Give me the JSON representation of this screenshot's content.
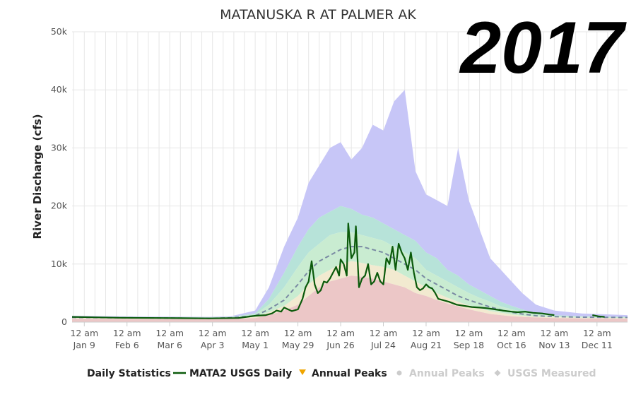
{
  "chart_data": {
    "type": "area",
    "title": "MATANUSKA R AT PALMER AK",
    "year_label": "2017",
    "ylabel": "River Discharge (cfs)",
    "xlabel": "",
    "ylim": [
      0,
      50000
    ],
    "y_ticks": [
      {
        "value": 0,
        "label": "0"
      },
      {
        "value": 10000,
        "label": "10k"
      },
      {
        "value": 20000,
        "label": "20k"
      },
      {
        "value": 30000,
        "label": "30k"
      },
      {
        "value": 40000,
        "label": "40k"
      },
      {
        "value": 50000,
        "label": "50k"
      }
    ],
    "x_ticks": [
      {
        "date": "2017-01-09",
        "line1": "12 am",
        "line2": "Jan 9"
      },
      {
        "date": "2017-02-06",
        "line1": "12 am",
        "line2": "Feb 6"
      },
      {
        "date": "2017-03-06",
        "line1": "12 am",
        "line2": "Mar 6"
      },
      {
        "date": "2017-04-03",
        "line1": "12 am",
        "line2": "Apr 3"
      },
      {
        "date": "2017-05-01",
        "line1": "12 am",
        "line2": "May 1"
      },
      {
        "date": "2017-05-29",
        "line1": "12 am",
        "line2": "May 29"
      },
      {
        "date": "2017-06-26",
        "line1": "12 am",
        "line2": "Jun 26"
      },
      {
        "date": "2017-07-24",
        "line1": "12 am",
        "line2": "Jul 24"
      },
      {
        "date": "2017-08-21",
        "line1": "12 am",
        "line2": "Aug 21"
      },
      {
        "date": "2017-09-18",
        "line1": "12 am",
        "line2": "Sep 18"
      },
      {
        "date": "2017-10-16",
        "line1": "12 am",
        "line2": "Oct 16"
      },
      {
        "date": "2017-11-13",
        "line1": "12 am",
        "line2": "Nov 13"
      },
      {
        "date": "2017-12-11",
        "line1": "12 am",
        "line2": "Dec 11"
      }
    ],
    "grid": true,
    "colors": {
      "max_band": "#c7c6f7",
      "p90_band": "#b7e3d9",
      "p75_band": "#c9ecd1",
      "p25_band": "#f2ead0",
      "p10_band": "#ecc7c7",
      "median": "#7a8aa3",
      "daily": "#0b5a0b",
      "annual_peaks": "#f0a500",
      "disabled": "#cccccc"
    },
    "stats_x": [
      "2017-01-01",
      "2017-02-01",
      "2017-03-01",
      "2017-04-01",
      "2017-04-15",
      "2017-05-01",
      "2017-05-10",
      "2017-05-20",
      "2017-05-29",
      "2017-06-05",
      "2017-06-12",
      "2017-06-19",
      "2017-06-26",
      "2017-07-03",
      "2017-07-10",
      "2017-07-17",
      "2017-07-24",
      "2017-07-31",
      "2017-08-07",
      "2017-08-14",
      "2017-08-21",
      "2017-08-28",
      "2017-09-04",
      "2017-09-11",
      "2017-09-18",
      "2017-09-25",
      "2017-10-02",
      "2017-10-09",
      "2017-10-16",
      "2017-10-23",
      "2017-11-01",
      "2017-11-13",
      "2017-12-01",
      "2017-12-31"
    ],
    "stats": {
      "max": [
        1100,
        1000,
        950,
        900,
        1000,
        2000,
        6000,
        13000,
        18000,
        24000,
        27000,
        30000,
        31000,
        28000,
        30000,
        34000,
        33000,
        38000,
        40000,
        26000,
        22000,
        21000,
        20000,
        30000,
        21000,
        16000,
        11000,
        9000,
        7000,
        5000,
        3000,
        2000,
        1500,
        1200
      ],
      "p90": [
        1000,
        900,
        850,
        800,
        900,
        1500,
        4000,
        8500,
        13000,
        16000,
        18000,
        19000,
        20000,
        19500,
        18500,
        18000,
        17000,
        16000,
        15000,
        14000,
        12000,
        11000,
        9000,
        8000,
        6500,
        5500,
        4500,
        3500,
        2800,
        2200,
        1500,
        1200,
        1000,
        900
      ],
      "p75": [
        900,
        850,
        800,
        750,
        850,
        1300,
        3000,
        6000,
        9500,
        12000,
        13500,
        15000,
        15500,
        15500,
        15000,
        14500,
        14000,
        13000,
        12000,
        11000,
        9000,
        8000,
        7000,
        6000,
        5000,
        4200,
        3500,
        2700,
        2200,
        1800,
        1300,
        1100,
        950,
        850
      ],
      "median": [
        800,
        750,
        700,
        650,
        750,
        1100,
        2200,
        3800,
        6500,
        8800,
        10500,
        11500,
        12500,
        13000,
        13000,
        12500,
        12000,
        11000,
        10000,
        9000,
        7500,
        6500,
        5500,
        4500,
        3800,
        3200,
        2600,
        2100,
        1700,
        1400,
        1100,
        950,
        850,
        800
      ],
      "p25": [
        700,
        650,
        600,
        600,
        650,
        900,
        1700,
        2800,
        4500,
        6500,
        8000,
        9000,
        10000,
        10500,
        10200,
        9800,
        9500,
        9000,
        8000,
        7000,
        6000,
        5000,
        4200,
        3500,
        2900,
        2400,
        1900,
        1600,
        1300,
        1100,
        950,
        850,
        750,
        700
      ],
      "p10": [
        600,
        550,
        500,
        500,
        550,
        700,
        1200,
        2000,
        3000,
        4500,
        6000,
        7000,
        7500,
        8000,
        7800,
        7500,
        7000,
        6500,
        6000,
        5000,
        4500,
        3800,
        3200,
        2700,
        2200,
        1800,
        1400,
        1200,
        1000,
        900,
        800,
        700,
        650,
        600
      ]
    },
    "series": [
      {
        "name": "MATA2 USGS Daily",
        "x": [
          "2017-01-01",
          "2017-02-01",
          "2017-03-01",
          "2017-04-01",
          "2017-04-20",
          "2017-05-01",
          "2017-05-08",
          "2017-05-12",
          "2017-05-15",
          "2017-05-18",
          "2017-05-20",
          "2017-05-25",
          "2017-05-29",
          "2017-06-01",
          "2017-06-03",
          "2017-06-05",
          "2017-06-07",
          "2017-06-09",
          "2017-06-11",
          "2017-06-13",
          "2017-06-15",
          "2017-06-17",
          "2017-06-19",
          "2017-06-21",
          "2017-06-23",
          "2017-06-25",
          "2017-06-26",
          "2017-06-28",
          "2017-06-30",
          "2017-07-01",
          "2017-07-03",
          "2017-07-05",
          "2017-07-06",
          "2017-07-08",
          "2017-07-10",
          "2017-07-12",
          "2017-07-14",
          "2017-07-16",
          "2017-07-18",
          "2017-07-20",
          "2017-07-22",
          "2017-07-24",
          "2017-07-26",
          "2017-07-28",
          "2017-07-30",
          "2017-08-01",
          "2017-08-03",
          "2017-08-05",
          "2017-08-07",
          "2017-08-09",
          "2017-08-11",
          "2017-08-13",
          "2017-08-15",
          "2017-08-17",
          "2017-08-19",
          "2017-08-21",
          "2017-08-23",
          "2017-08-25",
          "2017-08-27",
          "2017-08-29",
          "2017-09-01",
          "2017-09-05",
          "2017-09-10",
          "2017-09-15",
          "2017-09-20",
          "2017-09-25",
          "2017-09-30",
          "2017-10-05",
          "2017-10-10",
          "2017-10-16",
          "2017-10-20",
          "2017-10-25",
          "2017-10-30",
          "2017-11-05",
          "2017-11-10",
          "2017-11-13",
          "2017-12-08",
          "2017-12-12",
          "2017-12-16"
        ],
        "y": [
          900,
          750,
          700,
          650,
          700,
          1100,
          1200,
          1500,
          2000,
          1800,
          2500,
          1900,
          2200,
          4000,
          6000,
          7000,
          10500,
          6500,
          5000,
          5500,
          7000,
          6800,
          7500,
          8500,
          9500,
          8000,
          10800,
          10000,
          8000,
          17000,
          11000,
          12000,
          16500,
          6000,
          7500,
          8000,
          10000,
          6500,
          7000,
          8500,
          7000,
          6500,
          11000,
          10000,
          13000,
          9000,
          13500,
          12000,
          11000,
          9000,
          12000,
          8500,
          6000,
          5500,
          5800,
          6500,
          6000,
          5800,
          5000,
          4000,
          3800,
          3500,
          3000,
          2800,
          2600,
          2500,
          2400,
          2200,
          2000,
          1800,
          1700,
          1800,
          1600,
          1500,
          1300,
          1200,
          1200,
          1000,
          900
        ]
      }
    ],
    "gaps_after": [
      "2017-11-13"
    ]
  },
  "legend": {
    "title": "Daily Statistics",
    "items": [
      {
        "label": "MATA2 USGS Daily",
        "icon": "line-marker-icon"
      },
      {
        "label": "Annual Peaks",
        "icon": "triangle-down-icon"
      },
      {
        "label": "Annual Peaks",
        "icon": "circle-icon"
      },
      {
        "label": "USGS Measured",
        "icon": "diamond-icon"
      }
    ]
  }
}
